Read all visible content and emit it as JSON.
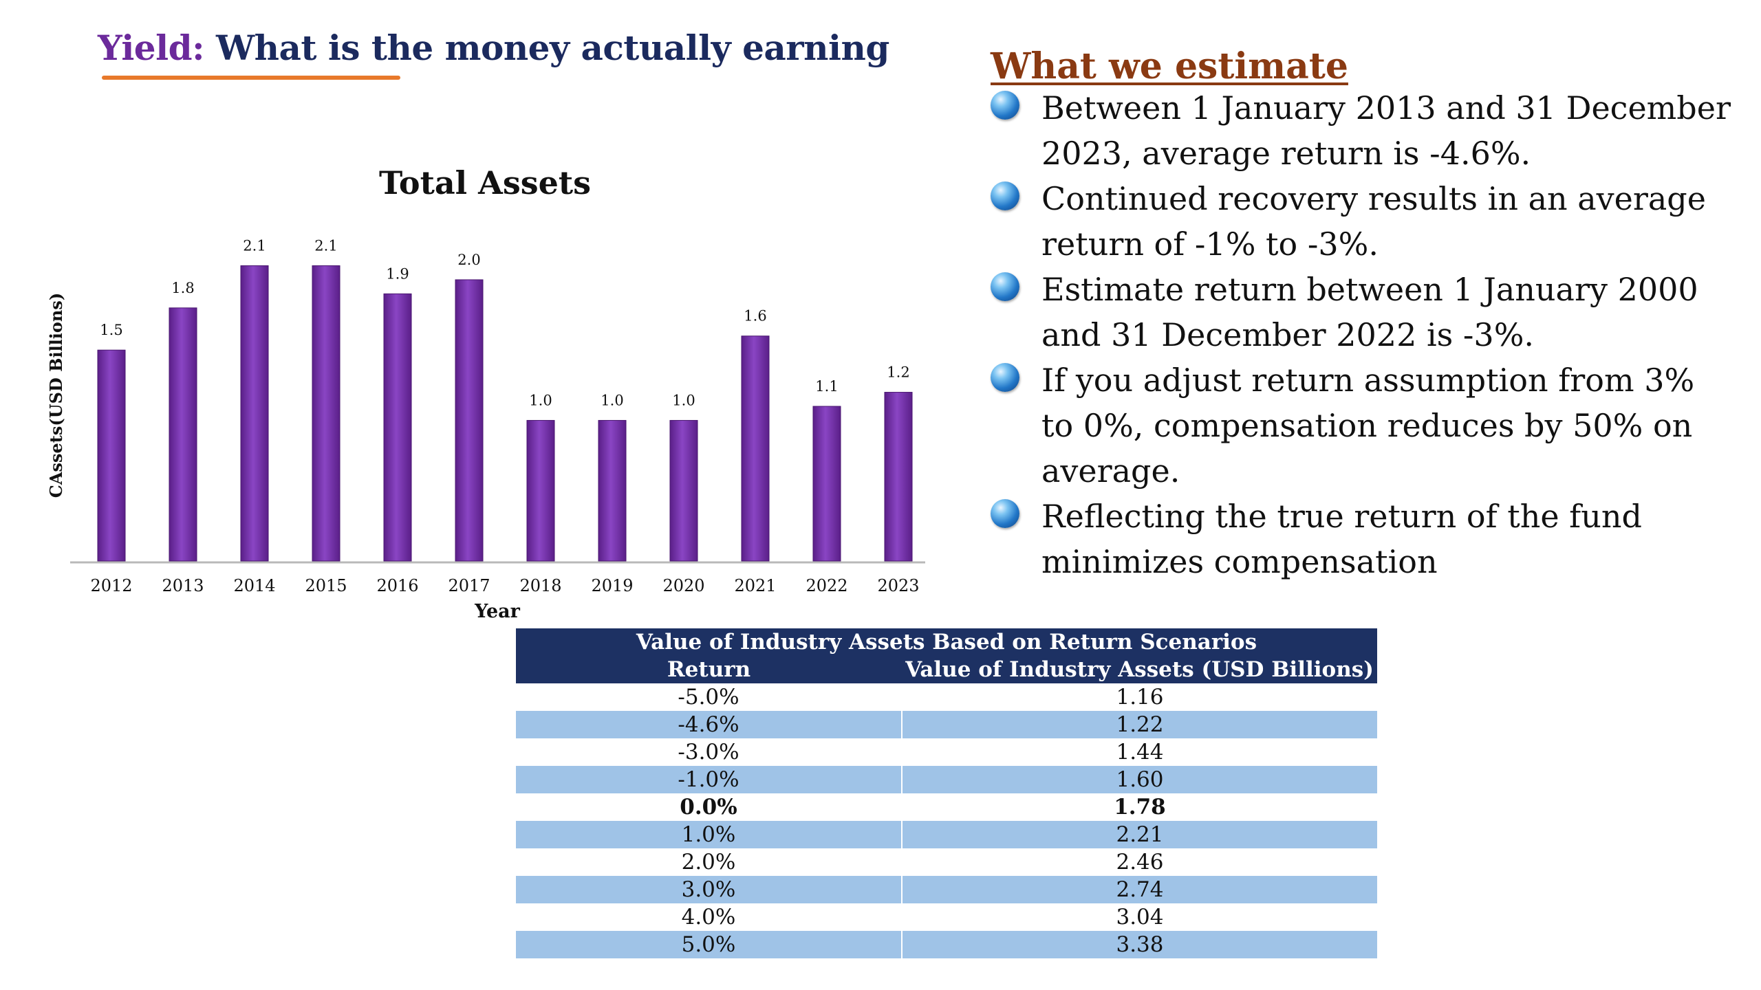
{
  "header": {
    "title_accent": "Yield:",
    "title_rest": " What is the money actually earning"
  },
  "chart_data": {
    "type": "bar",
    "title": "Total Assets",
    "xlabel": "Year",
    "ylabel": "CAssets(USD Billions)",
    "categories": [
      "2012",
      "2013",
      "2014",
      "2015",
      "2016",
      "2017",
      "2018",
      "2019",
      "2020",
      "2021",
      "2022",
      "2023"
    ],
    "values": [
      1.5,
      1.8,
      2.1,
      2.1,
      1.9,
      2.0,
      1.0,
      1.0,
      1.0,
      1.6,
      1.1,
      1.2
    ],
    "data_labels": [
      "1.5",
      "1.8",
      "2.1",
      "2.1",
      "1.9",
      "2.0",
      "1.0",
      "1.0",
      "1.0",
      "1.6",
      "1.1",
      "1.2"
    ],
    "bar_color": "#7130a5",
    "ylim": [
      0,
      2.2
    ],
    "grid": false,
    "legend": "none"
  },
  "estimates": {
    "heading": "What we estimate",
    "bullets": [
      "Between 1 January 2013 and 31 December 2023, average return is -4.6%.",
      "Continued recovery results in an average return of -1% to -3%.",
      "Estimate return between 1 January 2000 and 31 December 2022 is -3%.",
      "If you adjust return assumption from 3% to 0%, compensation reduces by 50% on average.",
      "Reflecting the true return of the fund minimizes compensation"
    ]
  },
  "table": {
    "title": "Value of Industry Assets Based on Return Scenarios",
    "col_return": "Return",
    "col_value": "Value of Industry Assets (USD Billions)",
    "rows": [
      {
        "ret": "-5.0%",
        "val": "1.16"
      },
      {
        "ret": "-4.6%",
        "val": "1.22"
      },
      {
        "ret": "-3.0%",
        "val": "1.44"
      },
      {
        "ret": "-1.0%",
        "val": "1.60"
      },
      {
        "ret": "0.0%",
        "val": "1.78"
      },
      {
        "ret": "1.0%",
        "val": "2.21"
      },
      {
        "ret": "2.0%",
        "val": "2.46"
      },
      {
        "ret": "3.0%",
        "val": "2.74"
      },
      {
        "ret": "4.0%",
        "val": "3.04"
      },
      {
        "ret": "5.0%",
        "val": "3.38"
      }
    ],
    "highlight_color": "#9fc3e7",
    "header_color": "#1d3163"
  }
}
